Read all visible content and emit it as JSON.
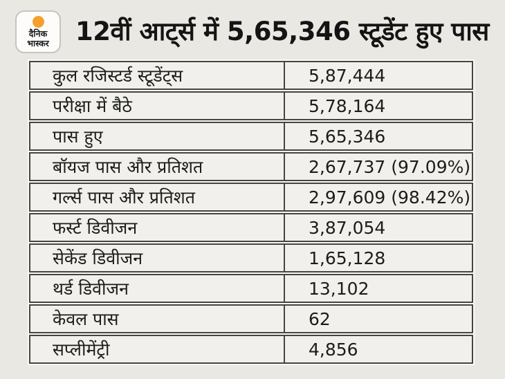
{
  "brand": {
    "logo_line1": "दैनिक",
    "logo_line2": "भास्कर"
  },
  "header": {
    "title": "12वीं आट्‌र्स में 5,65,346 स्टूडेंट हुए पास"
  },
  "colors": {
    "page_bg": "#eae8e3",
    "cell_bg": "#f1f0ec",
    "table_border": "#454441",
    "table_halo": "#fbfaf7",
    "accent_orange": "#f5a02b",
    "text": "#1c1c1c"
  },
  "chart_data": {
    "type": "table",
    "title": "12वीं आट्‌र्स में 5,65,346 स्टूडेंट हुए पास",
    "rows": [
      {
        "label": "कुल रजिस्टर्ड स्टूडेंट्स",
        "value": "5,87,444",
        "numeric": 587444
      },
      {
        "label": "परीक्षा में बैठे",
        "value": "5,78,164",
        "numeric": 578164
      },
      {
        "label": "पास हुए",
        "value": "5,65,346",
        "numeric": 565346
      },
      {
        "label": "बॉयज पास और प्रतिशत",
        "value": "2,67,737 (97.09%)",
        "numeric": 267737,
        "percent": 97.09
      },
      {
        "label": "गर्ल्स पास और प्रतिशत",
        "value": "2,97,609 (98.42%)",
        "numeric": 297609,
        "percent": 98.42
      },
      {
        "label": "फर्स्ट डिवीजन",
        "value": "3,87,054",
        "numeric": 387054
      },
      {
        "label": "सेकेंड डिवीजन",
        "value": "1,65,128",
        "numeric": 165128
      },
      {
        "label": "थर्ड डिवीजन",
        "value": "13,102",
        "numeric": 13102
      },
      {
        "label": "केवल पास",
        "value": "62",
        "numeric": 62
      },
      {
        "label": "सप्लीमेंट्री",
        "value": "4,856",
        "numeric": 4856
      }
    ]
  }
}
